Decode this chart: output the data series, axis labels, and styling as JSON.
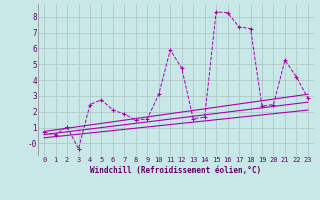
{
  "background_color": "#c8e8e8",
  "grid_color": "#b0c8c8",
  "line_color": "#aa00aa",
  "xlabel": "Windchill (Refroidissement éolien,°C)",
  "xlim": [
    -0.5,
    23.5
  ],
  "ylim": [
    -0.8,
    8.8
  ],
  "xticks": [
    0,
    1,
    2,
    3,
    4,
    5,
    6,
    7,
    8,
    9,
    10,
    11,
    12,
    13,
    14,
    15,
    16,
    17,
    18,
    19,
    20,
    21,
    22,
    23
  ],
  "yticks": [
    0,
    1,
    2,
    3,
    4,
    5,
    6,
    7,
    8
  ],
  "ytick_labels": [
    "-0",
    "1",
    "2",
    "3",
    "4",
    "5",
    "6",
    "7",
    "8"
  ],
  "main_line": {
    "x": [
      0,
      1,
      2,
      3,
      4,
      5,
      6,
      7,
      8,
      9,
      10,
      11,
      12,
      13,
      14,
      15,
      16,
      17,
      18,
      19,
      20,
      21,
      22,
      23
    ],
    "y": [
      0.7,
      0.55,
      1.05,
      -0.35,
      2.45,
      2.75,
      2.1,
      1.85,
      1.45,
      1.55,
      3.1,
      5.9,
      4.75,
      1.55,
      1.65,
      8.3,
      8.25,
      7.35,
      7.25,
      2.35,
      2.45,
      5.25,
      4.2,
      2.85
    ]
  },
  "trend_lines": [
    {
      "x": [
        0,
        23
      ],
      "y": [
        0.75,
        3.1
      ]
    },
    {
      "x": [
        0,
        23
      ],
      "y": [
        0.55,
        2.6
      ]
    },
    {
      "x": [
        0,
        23
      ],
      "y": [
        0.35,
        2.1
      ]
    }
  ]
}
